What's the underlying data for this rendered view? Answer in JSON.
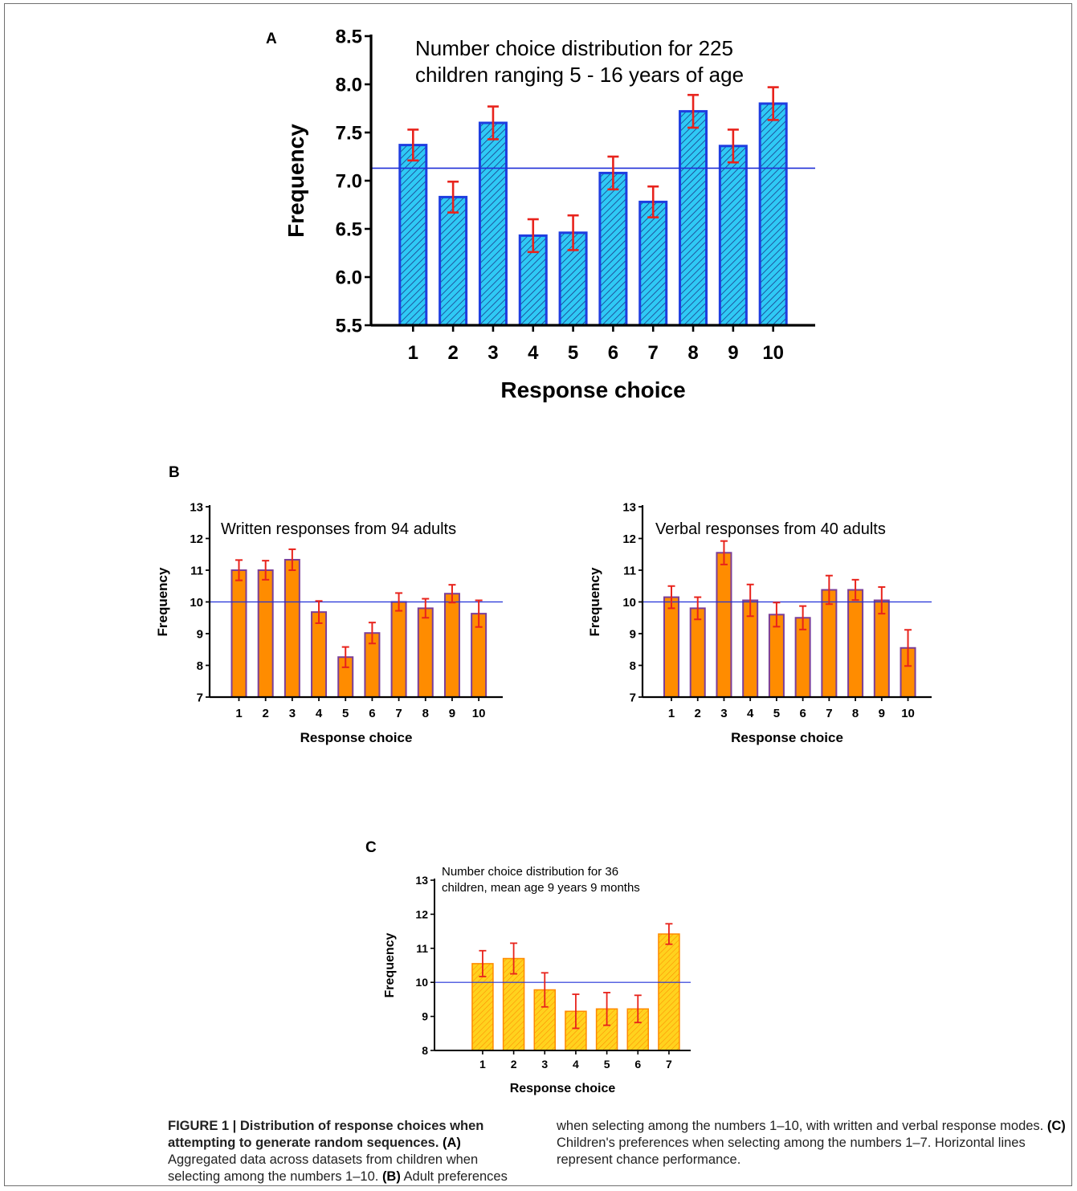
{
  "panel_letters": {
    "a": "A",
    "b": "B",
    "c": "C"
  },
  "chart_data": [
    {
      "type": "bar",
      "panel": "A",
      "title_lines": [
        "Number choice distribution for 225",
        "children ranging 5 - 16 years of age"
      ],
      "xlabel": "Response choice",
      "ylabel": "Frequency",
      "categories": [
        "1",
        "2",
        "3",
        "4",
        "5",
        "6",
        "7",
        "8",
        "9",
        "10"
      ],
      "values": [
        7.37,
        6.83,
        7.6,
        6.43,
        6.46,
        7.08,
        6.78,
        7.72,
        7.36,
        7.8
      ],
      "errors": [
        0.16,
        0.16,
        0.17,
        0.17,
        0.18,
        0.17,
        0.16,
        0.17,
        0.17,
        0.17
      ],
      "ylim": [
        5.5,
        8.5
      ],
      "yticks": [
        "5.5",
        "6.0",
        "6.5",
        "7.0",
        "7.5",
        "8.0",
        "8.5"
      ],
      "reference_line": 7.13,
      "colors": {
        "fill": "#2fc9f5",
        "stroke": "#1e3de0",
        "hatch": "#1a3a8a",
        "error": "#e8231c",
        "line": "#2030d8"
      }
    },
    {
      "type": "bar",
      "panel": "B-left",
      "title_lines": [
        "Written responses from 94 adults"
      ],
      "xlabel": "Response choice",
      "ylabel": "Frequency",
      "categories": [
        "1",
        "2",
        "3",
        "4",
        "5",
        "6",
        "7",
        "8",
        "9",
        "10"
      ],
      "values": [
        11.0,
        11.0,
        11.33,
        9.68,
        8.26,
        9.02,
        10.0,
        9.8,
        10.26,
        9.63
      ],
      "errors": [
        0.32,
        0.3,
        0.33,
        0.35,
        0.32,
        0.33,
        0.28,
        0.3,
        0.28,
        0.42
      ],
      "ylim": [
        7,
        13
      ],
      "yticks": [
        "7",
        "8",
        "9",
        "10",
        "11",
        "12",
        "13"
      ],
      "reference_line": 10,
      "colors": {
        "fill": "#ff8c00",
        "stroke": "#7b3f98",
        "error": "#e8231c",
        "line": "#2030d8"
      }
    },
    {
      "type": "bar",
      "panel": "B-right",
      "title_lines": [
        "Verbal responses from 40 adults"
      ],
      "xlabel": "Response choice",
      "ylabel": "Frequency",
      "categories": [
        "1",
        "2",
        "3",
        "4",
        "5",
        "6",
        "7",
        "8",
        "9",
        "10"
      ],
      "values": [
        10.15,
        9.8,
        11.55,
        10.05,
        9.6,
        9.5,
        10.38,
        10.38,
        10.05,
        8.55
      ],
      "errors": [
        0.35,
        0.35,
        0.37,
        0.5,
        0.38,
        0.37,
        0.45,
        0.32,
        0.42,
        0.57
      ],
      "ylim": [
        7,
        13
      ],
      "yticks": [
        "7",
        "8",
        "9",
        "10",
        "11",
        "12",
        "13"
      ],
      "reference_line": 10,
      "colors": {
        "fill": "#ff8c00",
        "stroke": "#7b3f98",
        "error": "#e8231c",
        "line": "#2030d8"
      }
    },
    {
      "type": "bar",
      "panel": "C",
      "title_lines": [
        "Number choice distribution for 36",
        "children, mean age 9 years 9 months"
      ],
      "xlabel": "Response choice",
      "ylabel": "Frequency",
      "categories": [
        "1",
        "2",
        "3",
        "4",
        "5",
        "6",
        "7"
      ],
      "values": [
        10.55,
        10.7,
        9.78,
        9.15,
        9.22,
        9.22,
        11.42
      ],
      "errors": [
        0.38,
        0.45,
        0.5,
        0.5,
        0.48,
        0.4,
        0.3
      ],
      "ylim": [
        8,
        13
      ],
      "yticks": [
        "8",
        "9",
        "10",
        "11",
        "12",
        "13"
      ],
      "reference_line": 10,
      "colors": {
        "fill": "#ffd21e",
        "stroke": "#ff8a00",
        "hatch": "#ff8a00",
        "error": "#e8231c",
        "line": "#2030d8"
      }
    }
  ],
  "caption": {
    "col1_bold": "FIGURE 1 | Distribution of response choices when attempting to generate random sequences.",
    "col1_a_label": "(A)",
    "col1_a_text": "Aggregated data across datasets from children when selecting among the numbers 1–10.",
    "col1_b_label": "(B)",
    "col1_b_text": "Adult preferences",
    "col2_text1": "when selecting among the numbers 1–10, with written and verbal response modes.",
    "col2_c_label": "(C)",
    "col2_c_text": "Children's preferences when selecting among the numbers 1–7. Horizontal lines represent chance performance."
  }
}
